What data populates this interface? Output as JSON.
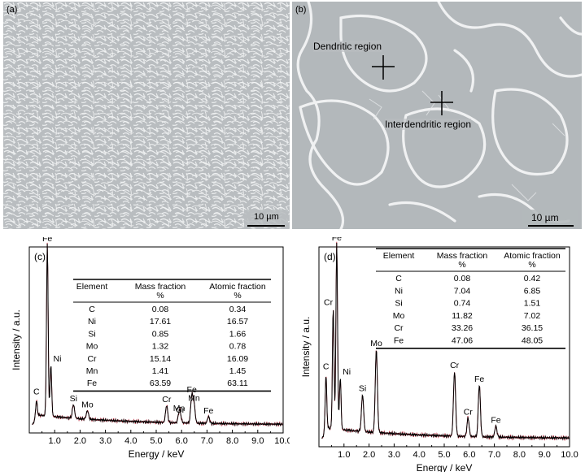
{
  "panels": {
    "a": {
      "label": "(a)",
      "scale_bar": "10 µm"
    },
    "b": {
      "label": "(b)",
      "scale_bar": "10 µm",
      "annotations": [
        "Dendritic region",
        "Interdendritic region"
      ]
    }
  },
  "colors": {
    "sem_background": "#b8bcbf",
    "sem_boundary": "#f2f2f2",
    "spectrum_line": "#000000",
    "spectrum_noise": "#c0283c"
  },
  "chart_data": [
    {
      "type": "line",
      "panel": "(c)",
      "xlabel": "Energy / keV",
      "ylabel": "Intensity / a.u.",
      "xlim": [
        0,
        10
      ],
      "xticks": [
        "1.0",
        "2.0",
        "3.0",
        "4.0",
        "5.0",
        "6.0",
        "7.0",
        "8.0",
        "9.0",
        "10.0"
      ],
      "peaks": [
        {
          "x": 0.28,
          "y": 0.1,
          "label": "C"
        },
        {
          "x": 0.71,
          "y": 1.0,
          "label": "Fe"
        },
        {
          "x": 0.85,
          "y": 0.3,
          "label": "Ni"
        },
        {
          "x": 1.74,
          "y": 0.08,
          "label": "Si"
        },
        {
          "x": 2.29,
          "y": 0.05,
          "label": "Mo"
        },
        {
          "x": 5.41,
          "y": 0.1,
          "label": "Cr"
        },
        {
          "x": 5.9,
          "y": 0.05,
          "label": "Mn"
        },
        {
          "x": 5.95,
          "y": 0.04,
          "label": "Cr"
        },
        {
          "x": 6.4,
          "y": 0.16,
          "label": "Fe"
        },
        {
          "x": 6.49,
          "y": 0.11,
          "label": "Mn"
        },
        {
          "x": 7.06,
          "y": 0.04,
          "label": "Fe"
        }
      ],
      "table": {
        "headers": [
          [
            "Element",
            ""
          ],
          [
            "Mass fraction",
            "%"
          ],
          [
            "Atomic fraction",
            "%"
          ]
        ],
        "rows": [
          [
            "C",
            "0.08",
            "0.34"
          ],
          [
            "Ni",
            "17.61",
            "16.57"
          ],
          [
            "Si",
            "0.85",
            "1.66"
          ],
          [
            "Mo",
            "1.32",
            "0.78"
          ],
          [
            "Cr",
            "15.14",
            "16.09"
          ],
          [
            "Mn",
            "1.41",
            "1.45"
          ],
          [
            "Fe",
            "63.59",
            "63.11"
          ]
        ]
      }
    },
    {
      "type": "line",
      "panel": "(d)",
      "xlabel": "Energy / keV",
      "ylabel": "Intensity / a.u.",
      "xlim": [
        0,
        10
      ],
      "xticks": [
        "1.0",
        "2.0",
        "3.0",
        "4.0",
        "5.0",
        "6.0",
        "7.0",
        "8.0",
        "9.0",
        "10.0"
      ],
      "peaks": [
        {
          "x": 0.28,
          "y": 0.3,
          "label": "C"
        },
        {
          "x": 0.57,
          "y": 0.65,
          "label": "Cr"
        },
        {
          "x": 0.71,
          "y": 1.0,
          "label": "Fe"
        },
        {
          "x": 0.85,
          "y": 0.28,
          "label": "Ni"
        },
        {
          "x": 1.74,
          "y": 0.2,
          "label": "Si"
        },
        {
          "x": 2.29,
          "y": 0.45,
          "label": "Mo"
        },
        {
          "x": 5.41,
          "y": 0.35,
          "label": "Cr"
        },
        {
          "x": 5.95,
          "y": 0.1,
          "label": "Cr"
        },
        {
          "x": 6.4,
          "y": 0.28,
          "label": "Fe"
        },
        {
          "x": 7.06,
          "y": 0.06,
          "label": "Fe"
        }
      ],
      "table": {
        "headers": [
          [
            "Element",
            ""
          ],
          [
            "Mass fraction",
            "%"
          ],
          [
            "Atomic fraction",
            "%"
          ]
        ],
        "rows": [
          [
            "C",
            "0.08",
            "0.42"
          ],
          [
            "Ni",
            "7.04",
            "6.85"
          ],
          [
            "Si",
            "0.74",
            "1.51"
          ],
          [
            "Mo",
            "11.82",
            "7.02"
          ],
          [
            "Cr",
            "33.26",
            "36.15"
          ],
          [
            "Fe",
            "47.06",
            "48.05"
          ]
        ]
      }
    }
  ]
}
